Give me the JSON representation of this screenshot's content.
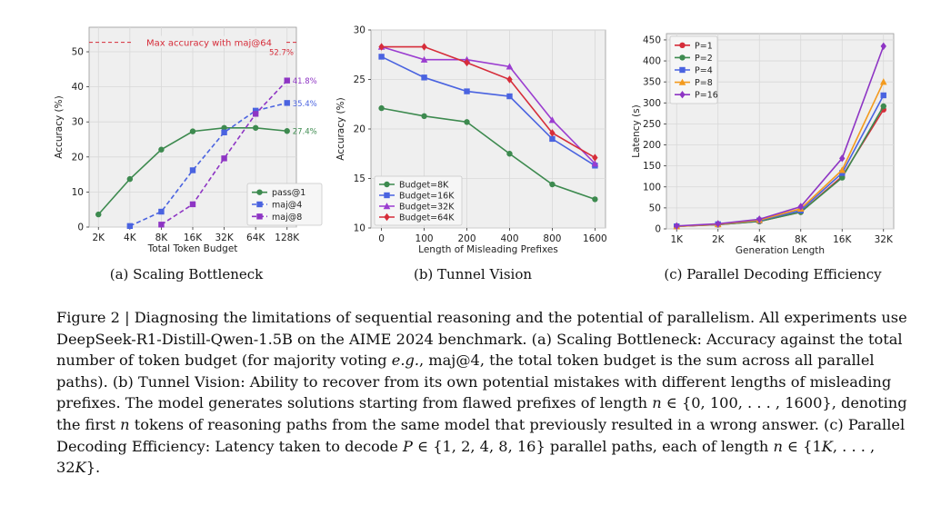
{
  "subcaptions": {
    "a": "(a) Scaling Bottleneck",
    "b": "(b) Tunnel Vision",
    "c": "(c) Parallel Decoding Efficiency"
  },
  "caption": {
    "p1": "Figure 2 | Diagnosing the limitations of sequential reasoning and the potential of parallelism. All experiments use DeepSeek-R1-Distill-Qwen-1.5B on the AIME 2024 benchmark. (a) Scaling Bottleneck: Accuracy against the total number of token budget (for majority voting ",
    "eg": "e.g.",
    "p2": ", maj@4, the total token budget is the sum across all parallel paths). (b) Tunnel Vision: Ability to recover from its own potential mistakes with different lengths of misleading prefixes. The model generates solutions starting from flawed prefixes of length ",
    "n1": "n",
    "p3": " ∈ {0, 100, . . . , 1600}, denoting the first ",
    "n2": "n",
    "p4": " tokens of reasoning paths from the same model that previously resulted in a wrong answer. (c) Parallel Decoding Efficiency: Latency taken to decode ",
    "P": "P",
    "p5": " ∈ {1, 2, 4, 8, 16} parallel paths, each of length ",
    "n3": "n",
    "p6": " ∈ {1",
    "K1": "K",
    "p7": ", . . . , 32",
    "K2": "K",
    "p8": "}."
  },
  "chart_data": [
    {
      "type": "line",
      "xlabel": "Total Token Budget",
      "ylabel": "Accuracy (%)",
      "categories": [
        "2K",
        "4K",
        "8K",
        "16K",
        "32K",
        "64K",
        "128K"
      ],
      "ylim": [
        0,
        57
      ],
      "yticks": [
        0,
        10,
        20,
        30,
        40,
        50
      ],
      "grid": true,
      "legend": "lower-right",
      "reference_line": {
        "value": 52.7,
        "label": "Max accuracy with maj@64",
        "value_label": "52.7%",
        "color": "#d62d3a"
      },
      "series": [
        {
          "name": "pass@1",
          "color": "#3d8a4f",
          "style": "solid",
          "marker": "circle",
          "values": [
            3.6,
            13.7,
            22.1,
            27.3,
            28.3,
            28.3,
            27.4
          ],
          "end_label": "27.4%"
        },
        {
          "name": "maj@4",
          "color": "#4a63e0",
          "style": "dashed",
          "marker": "square",
          "values": [
            null,
            0.3,
            4.4,
            16.2,
            27.0,
            33.2,
            35.4
          ],
          "end_label": "35.4%"
        },
        {
          "name": "maj@8",
          "color": "#8e35c4",
          "style": "dashed",
          "marker": "square",
          "values": [
            null,
            null,
            0.7,
            6.5,
            19.6,
            32.3,
            41.8
          ],
          "end_label": "41.8%"
        }
      ]
    },
    {
      "type": "line",
      "xlabel": "Length of Misleading Prefixes",
      "ylabel": "Accuracy (%)",
      "categories": [
        "0",
        "100",
        "200",
        "400",
        "800",
        "1600"
      ],
      "ylim": [
        10,
        30
      ],
      "yticks": [
        10,
        15,
        20,
        25,
        30
      ],
      "grid": true,
      "legend": "lower-left",
      "series": [
        {
          "name": "Budget=8K",
          "color": "#3d8a4f",
          "marker": "circle",
          "values": [
            22.1,
            21.3,
            20.7,
            17.5,
            14.4,
            12.9
          ]
        },
        {
          "name": "Budget=16K",
          "color": "#4a63e0",
          "marker": "square",
          "values": [
            27.3,
            25.2,
            23.8,
            23.3,
            19.0,
            16.3
          ]
        },
        {
          "name": "Budget=32K",
          "color": "#9b3dd0",
          "marker": "triangle",
          "values": [
            28.3,
            27.0,
            27.0,
            26.3,
            20.9,
            16.5
          ]
        },
        {
          "name": "Budget=64K",
          "color": "#d62d3a",
          "marker": "diamond",
          "values": [
            28.3,
            28.3,
            26.7,
            25.0,
            19.6,
            17.1
          ]
        }
      ]
    },
    {
      "type": "line",
      "xlabel": "Generation Length",
      "ylabel": "Latency (s)",
      "categories": [
        "1K",
        "2K",
        "4K",
        "8K",
        "16K",
        "32K"
      ],
      "ylim": [
        0,
        465
      ],
      "yticks": [
        0,
        50,
        100,
        150,
        200,
        250,
        300,
        350,
        400,
        450
      ],
      "grid": true,
      "legend": "upper-left",
      "series": [
        {
          "name": "P=1",
          "color": "#d62d3a",
          "marker": "circle",
          "values": [
            6,
            10,
            18,
            40,
            125,
            284
          ]
        },
        {
          "name": "P=2",
          "color": "#3d8a4f",
          "marker": "circle",
          "values": [
            6,
            10,
            18,
            40,
            122,
            292
          ]
        },
        {
          "name": "P=4",
          "color": "#4a63e0",
          "marker": "square",
          "values": [
            6,
            11,
            20,
            44,
            133,
            318
          ]
        },
        {
          "name": "P=8",
          "color": "#f39a1e",
          "marker": "triangle",
          "values": [
            6,
            11,
            21,
            48,
            140,
            350
          ]
        },
        {
          "name": "P=16",
          "color": "#8e35c4",
          "marker": "diamond",
          "values": [
            7,
            12,
            23,
            53,
            168,
            435
          ]
        }
      ]
    }
  ]
}
